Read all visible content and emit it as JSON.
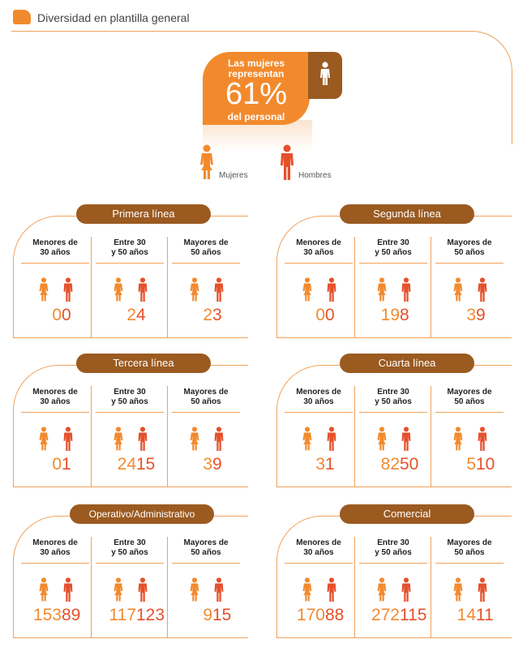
{
  "header": {
    "title": "Diversidad en plantilla general"
  },
  "summary": {
    "line1": "Las mujeres representan",
    "percent": "61%",
    "line2": "del personal"
  },
  "legend": {
    "women": "Mujeres",
    "men": "Hombres"
  },
  "colors": {
    "women": "#f28a2d",
    "men": "#e5502b",
    "pill": "#9b5a20",
    "accent": "#f0a15a"
  },
  "panels": [
    {
      "title": "Primera línea",
      "groups": [
        {
          "label1": "Menores de",
          "label2": "30 años",
          "women": "0",
          "men": "0"
        },
        {
          "label1": "Entre 30",
          "label2": "y 50 años",
          "women": "2",
          "men": "4"
        },
        {
          "label1": "Mayores de",
          "label2": "50 años",
          "women": "2",
          "men": "3"
        }
      ]
    },
    {
      "title": "Segunda línea",
      "groups": [
        {
          "label1": "Menores de",
          "label2": "30 años",
          "women": "0",
          "men": "0"
        },
        {
          "label1": "Entre 30",
          "label2": "y 50 años",
          "women": "19",
          "men": "8"
        },
        {
          "label1": "Mayores de",
          "label2": "50 años",
          "women": "3",
          "men": "9"
        }
      ]
    },
    {
      "title": "Tercera línea",
      "groups": [
        {
          "label1": "Menores de",
          "label2": "30 años",
          "women": "0",
          "men": "1"
        },
        {
          "label1": "Entre 30",
          "label2": "y 50 años",
          "women": "24",
          "men": "15"
        },
        {
          "label1": "Mayores de",
          "label2": "50 años",
          "women": "3",
          "men": "9"
        }
      ]
    },
    {
      "title": "Cuarta línea",
      "groups": [
        {
          "label1": "Menores de",
          "label2": "30 años",
          "women": "3",
          "men": "1"
        },
        {
          "label1": "Entre 30",
          "label2": "y 50 años",
          "women": "82",
          "men": "50"
        },
        {
          "label1": "Mayores de",
          "label2": "50 años",
          "women": "5",
          "men": "10"
        }
      ]
    },
    {
      "title": "Operativo/Administrativo",
      "groups": [
        {
          "label1": "Menores de",
          "label2": "30 años",
          "women": "153",
          "men": "89"
        },
        {
          "label1": "Entre 30",
          "label2": "y 50 años",
          "women": "117",
          "men": "123"
        },
        {
          "label1": "Mayores de",
          "label2": "50 años",
          "women": "9",
          "men": "15"
        }
      ]
    },
    {
      "title": "Comercial",
      "groups": [
        {
          "label1": "Menores de",
          "label2": "30 años",
          "women": "170",
          "men": "88"
        },
        {
          "label1": "Entre 30",
          "label2": "y 50 años",
          "women": "272",
          "men": "115"
        },
        {
          "label1": "Mayores de",
          "label2": "50 años",
          "women": "14",
          "men": "11"
        }
      ]
    }
  ]
}
